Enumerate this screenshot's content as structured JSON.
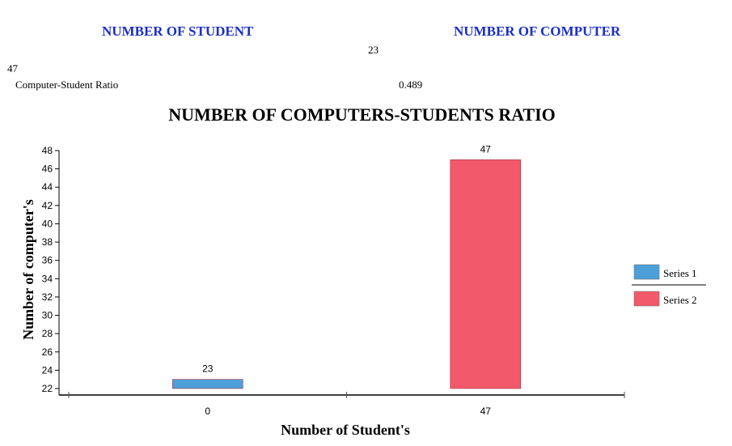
{
  "summary": {
    "students_header": "NUMBER OF STUDENT",
    "computers_header": "NUMBER OF COMPUTER",
    "computers_value": "23",
    "students_value": "47",
    "ratio_label": "Computer-Student Ratio",
    "ratio_value": "0.489"
  },
  "colors": {
    "header_text": "#1a2fc7",
    "series1": "#4d9fd8",
    "series2": "#f2596a"
  },
  "chart_data": {
    "type": "bar",
    "title": "NUMBER OF COMPUTERS-STUDENTS RATIO",
    "xlabel": "Number of Student's",
    "ylabel": "Number of computer's",
    "categories": [
      "0",
      "47"
    ],
    "series": [
      {
        "name": "Series 1",
        "values": [
          23,
          null
        ],
        "color": "#4d9fd8"
      },
      {
        "name": "Series 2",
        "values": [
          null,
          47
        ],
        "color": "#f2596a"
      }
    ],
    "ylim": [
      22,
      48
    ],
    "yticks": [
      22,
      24,
      26,
      28,
      30,
      32,
      34,
      36,
      38,
      40,
      42,
      44,
      46,
      48
    ],
    "grid": false,
    "legend": "right"
  }
}
